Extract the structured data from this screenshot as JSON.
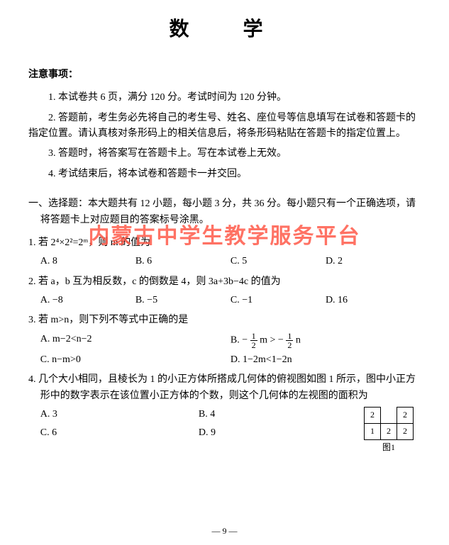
{
  "title": "数　学",
  "notice_head": "注意事项：",
  "notices": [
    "1. 本试卷共 6 页，满分 120 分。考试时间为 120 分钟。",
    "2. 答题前，考生务必先将自己的考生号、姓名、座位号等信息填写在试卷和答题卡的指定位置。请认真核对条形码上的相关信息后，将条形码粘贴在答题卡的指定位置上。",
    "3. 答题时，将答案写在答题卡上。写在本试卷上无效。",
    "4. 考试结束后，将本试卷和答题卡一并交回。"
  ],
  "section1": {
    "head": "一、选择题：本大题共有 12 小题，每小题 3 分，共 36 分。每小题只有一个正确选项，请将答题卡上对应题目的答案标号涂黑。"
  },
  "q1": {
    "text": "1. 若 2⁴×2²=2ᵐ，则 m 的值为",
    "A": "A. 8",
    "B": "B. 6",
    "C": "C. 5",
    "D": "D. 2"
  },
  "q2": {
    "text": "2. 若 a，b 互为相反数，c 的倒数是 4，则 3a+3b−4c 的值为",
    "A": "A. −8",
    "B": "B. −5",
    "C": "C. −1",
    "D": "D. 16"
  },
  "q3": {
    "text": "3. 若 m>n，则下列不等式中正确的是",
    "A": "A. m−2<n−2",
    "C": "C. n−m>0",
    "D": "D. 1−2m<1−2n"
  },
  "q4": {
    "text": "4. 几个大小相同，且棱长为 1 的小正方体所搭成几何体的俯视图如图 1 所示，图中小正方形中的数字表示在该位置小正方体的个数，则这个几何体的左视图的面积为",
    "A": "A. 3",
    "B": "B. 4",
    "C": "C. 6",
    "D": "D. 9",
    "grid": {
      "r1": [
        "2",
        "",
        "2"
      ],
      "r2": [
        "1",
        "2",
        "2"
      ]
    },
    "figlabel": "图1"
  },
  "watermark": "内蒙古中学生教学服务平台",
  "page": "— 9 —",
  "colors": {
    "text": "#000000",
    "bg": "#ffffff",
    "watermark": "#ff5a4a"
  }
}
